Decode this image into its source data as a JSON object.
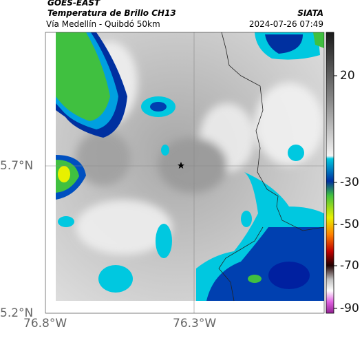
{
  "header": {
    "product": "GOES-EAST",
    "variable": "Temperatura de Brillo CH13",
    "route": "Vía Medellín - Quibdó 50km",
    "source": "SIATA",
    "timestamp": "2024-07-26 07:49"
  },
  "axes": {
    "lat_labels": [
      "5.7°N",
      "5.2°N"
    ],
    "lon_labels": [
      "76.8°W",
      "76.3°W"
    ]
  },
  "colorbar": {
    "ticks": [
      20,
      -30,
      -50,
      -70,
      -90
    ]
  }
}
